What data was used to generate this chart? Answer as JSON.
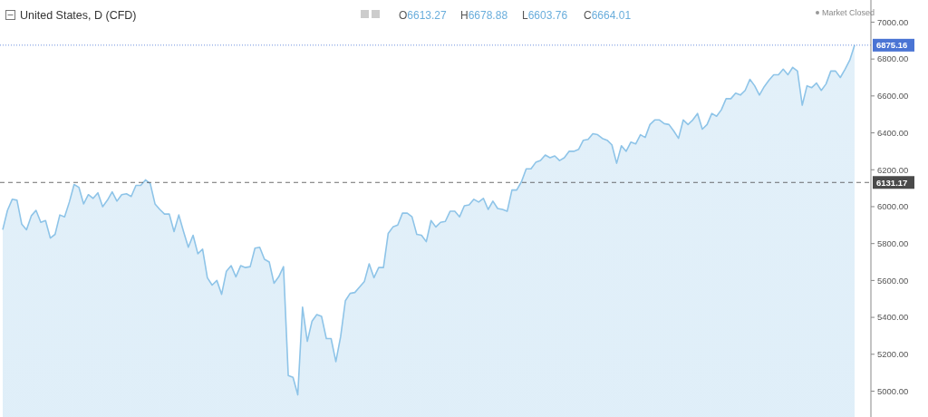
{
  "chart_data": {
    "type": "area",
    "title": "United States, D (CFD)",
    "annotations": [
      "O6613.27",
      "H6678.88",
      "L6603.76",
      "C6664.01",
      "Market Closed"
    ],
    "categories": [
      null,
      null,
      null,
      null,
      null,
      null,
      null,
      null,
      null,
      null,
      null,
      null,
      null,
      null,
      null,
      null,
      null,
      null,
      null,
      null,
      null,
      null,
      null,
      null,
      null,
      null,
      null,
      null,
      null,
      null,
      null,
      null,
      null,
      null,
      null,
      null,
      null,
      null,
      null,
      null,
      null,
      null,
      null,
      null,
      null,
      null,
      null,
      null,
      null,
      null,
      null,
      null,
      null,
      null,
      null,
      null,
      null,
      null,
      null,
      null,
      null,
      null,
      null,
      null,
      null,
      null,
      null,
      null,
      null,
      null,
      null,
      null,
      null,
      null,
      null,
      null,
      null,
      null,
      null,
      null,
      null,
      null,
      null,
      null,
      null,
      null,
      null,
      null,
      null,
      null,
      null,
      null,
      null,
      null,
      null,
      null,
      null,
      null,
      null,
      null,
      null,
      null,
      null,
      null,
      null,
      null,
      null,
      null,
      null,
      null,
      null,
      null,
      null,
      null,
      null,
      null,
      null,
      null,
      null,
      null,
      null,
      null,
      null,
      null,
      null,
      null,
      null,
      null,
      null,
      null,
      null,
      null,
      null,
      null,
      null,
      null,
      null,
      null,
      null,
      null,
      null,
      null,
      null,
      null,
      null,
      null,
      null,
      null,
      null,
      null,
      null,
      null,
      null,
      null,
      null,
      null,
      null,
      null,
      null,
      null,
      null,
      null,
      null,
      null,
      null,
      null,
      null,
      null,
      null,
      null,
      null,
      null,
      null,
      null,
      null,
      null,
      null,
      null,
      null,
      null
    ],
    "series": [
      {
        "color": "#8ec4e8",
        "values": [
          5875,
          5980,
          6040,
          6035,
          5905,
          5875,
          5950,
          5980,
          5915,
          5925,
          5830,
          5850,
          5955,
          5945,
          6025,
          6120,
          6105,
          6015,
          6065,
          6045,
          6075,
          6000,
          6035,
          6080,
          6030,
          6065,
          6070,
          6055,
          6115,
          6115,
          6145,
          6125,
          6015,
          5985,
          5960,
          5960,
          5865,
          5955,
          5865,
          5780,
          5845,
          5745,
          5770,
          5615,
          5575,
          5600,
          5525,
          5650,
          5680,
          5620,
          5680,
          5670,
          5675,
          5775,
          5780,
          5715,
          5700,
          5585,
          5620,
          5675,
          5085,
          5075,
          4980,
          5455,
          5270,
          5380,
          5415,
          5405,
          5285,
          5285,
          5160,
          5295,
          5490,
          5530,
          5535,
          5565,
          5595,
          5690,
          5615,
          5670,
          5670,
          5855,
          5890,
          5900,
          5965,
          5965,
          5945,
          5850,
          5845,
          5810,
          5925,
          5890,
          5915,
          5920,
          5975,
          5975,
          5945,
          6005,
          6010,
          6040,
          6025,
          6045,
          5985,
          6030,
          5990,
          5985,
          5975,
          6090,
          6090,
          6135,
          6205,
          6205,
          6240,
          6250,
          6280,
          6265,
          6275,
          6250,
          6265,
          6300,
          6300,
          6310,
          6360,
          6365,
          6395,
          6390,
          6370,
          6360,
          6335,
          6235,
          6330,
          6300,
          6350,
          6340,
          6390,
          6375,
          6445,
          6470,
          6470,
          6450,
          6445,
          6410,
          6370,
          6470,
          6445,
          6470,
          6505,
          6420,
          6445,
          6505,
          6490,
          6525,
          6585,
          6585,
          6615,
          6605,
          6630,
          6690,
          6655,
          6605,
          6650,
          6685,
          6715,
          6715,
          6745,
          6715,
          6755,
          6735,
          6550,
          6655,
          6645,
          6670,
          6630,
          6665,
          6735,
          6735,
          6700,
          6745,
          6795,
          6875
        ]
      }
    ],
    "ylim": [
      4860,
      7120
    ],
    "yticks": [
      {
        "value": 5000,
        "label": "5000.00"
      },
      {
        "value": 5200,
        "label": "5200.00"
      },
      {
        "value": 5400,
        "label": "5400.00"
      },
      {
        "value": 5600,
        "label": "5600.00"
      },
      {
        "value": 5800,
        "label": "5800.00"
      },
      {
        "value": 6000,
        "label": "6000.00"
      },
      {
        "value": 6200,
        "label": "6200.00"
      },
      {
        "value": 6400,
        "label": "6400.00"
      },
      {
        "value": 6600,
        "label": "6600.00"
      },
      {
        "value": 6800,
        "label": "6800.00"
      },
      {
        "value": 7000,
        "label": "7000.00"
      }
    ],
    "ref_lines": [
      {
        "axis": "y",
        "value": 6875.16,
        "label": "6875.16",
        "color": "#4a74d4",
        "line_style": "dotted"
      },
      {
        "axis": "y",
        "value": 6131.17,
        "label": "6131.17",
        "color": "#4a4a4a",
        "line_style": "dashed"
      }
    ],
    "tick_labels": "y",
    "grid": false,
    "marker": "none",
    "line_style": "solid"
  }
}
